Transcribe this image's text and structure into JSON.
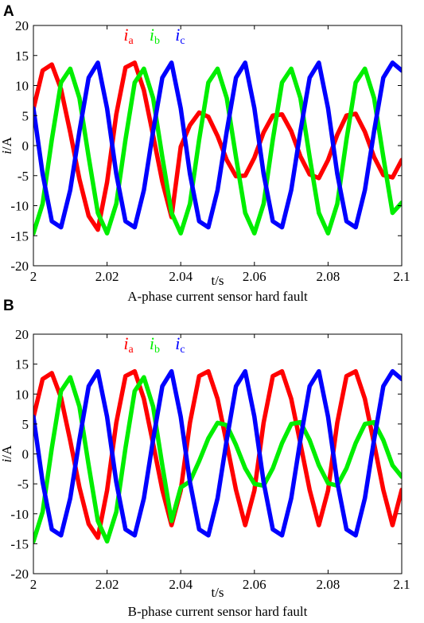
{
  "chart_data": [
    {
      "type": "line",
      "panel_label": "A",
      "caption": "A-phase current sensor hard fault",
      "xlabel": "t/s",
      "ylabel_italic": "i",
      "ylabel_rest": "/A",
      "xlim": [
        2.0,
        2.1
      ],
      "ylim": [
        -20,
        20
      ],
      "xticks": [
        2.0,
        2.02,
        2.04,
        2.06,
        2.08,
        2.1
      ],
      "xtick_labels": [
        "2",
        "2.02",
        "2.04",
        "2.06",
        "2.08",
        "2.1"
      ],
      "yticks": [
        20,
        15,
        10,
        5,
        0,
        -5,
        -10,
        -15,
        -20
      ],
      "ytick_labels": [
        "20",
        "15",
        "10",
        "5",
        "0",
        "-5",
        "-10",
        "-15",
        "-20"
      ],
      "series": [
        {
          "label_main": "i",
          "label_sub": "a",
          "color": "#ff0000",
          "description": "Phase a current: 50 Hz sine of amplitude ~14 A until ~2.04 s, then reduced amplitude ~5.5 A after fault",
          "x": [
            2.0,
            2.0025,
            2.005,
            2.0075,
            2.01,
            2.0125,
            2.015,
            2.0175,
            2.02,
            2.0225,
            2.025,
            2.0275,
            2.03,
            2.0325,
            2.035,
            2.0375,
            2.04,
            2.0425,
            2.045,
            2.0475,
            2.05,
            2.0525,
            2.055,
            2.0575,
            2.06,
            2.0625,
            2.065,
            2.0675,
            2.07,
            2.0725,
            2.075,
            2.0775,
            2.08,
            2.0825,
            2.085,
            2.0875,
            2.09,
            2.0925,
            2.095,
            2.0975,
            2.1
          ],
          "y": [
            6.1,
            12.5,
            13.5,
            9.4,
            2.2,
            -5.6,
            -11.7,
            -14.0,
            -6.1,
            5.2,
            13.0,
            13.8,
            9.2,
            1.7,
            -6.0,
            -11.9,
            -0.2,
            3.4,
            5.5,
            4.8,
            1.6,
            -2.4,
            -5.1,
            -5.0,
            -2.0,
            2.2,
            5.0,
            5.2,
            2.4,
            -1.8,
            -4.8,
            -5.4,
            -2.4,
            1.8,
            5.0,
            5.3,
            2.3,
            -1.9,
            -4.9,
            -5.3,
            -2.4
          ]
        },
        {
          "label_main": "i",
          "label_sub": "b",
          "color": "#00ee00",
          "description": "Phase b current: 50 Hz sine of amplitude ~14 A",
          "x": [
            2.0,
            2.0025,
            2.005,
            2.0075,
            2.01,
            2.0125,
            2.015,
            2.0175,
            2.02,
            2.0225,
            2.025,
            2.0275,
            2.03,
            2.0325,
            2.035,
            2.0375,
            2.04,
            2.0425,
            2.045,
            2.0475,
            2.05,
            2.0525,
            2.055,
            2.0575,
            2.06,
            2.0625,
            2.065,
            2.0675,
            2.07,
            2.0725,
            2.075,
            2.0775,
            2.08,
            2.0825,
            2.085,
            2.0875,
            2.09,
            2.0925,
            2.095,
            2.0975,
            2.1
          ],
          "y": [
            -14.6,
            -9.7,
            1.0,
            10.5,
            12.8,
            7.9,
            -1.9,
            -11.2,
            -14.6,
            -9.7,
            1.0,
            10.5,
            12.8,
            7.9,
            -1.9,
            -11.2,
            -14.6,
            -9.7,
            1.0,
            10.5,
            12.8,
            7.9,
            -1.9,
            -11.2,
            -14.6,
            -9.7,
            1.0,
            10.5,
            12.8,
            7.9,
            -1.9,
            -11.2,
            -14.6,
            -9.7,
            1.0,
            10.5,
            12.8,
            7.9,
            -1.9,
            -11.2,
            -9.5
          ]
        },
        {
          "label_main": "i",
          "label_sub": "c",
          "color": "#0000ff",
          "description": "Phase c current: 50 Hz sine of amplitude ~14 A",
          "x": [
            2.0,
            2.0025,
            2.005,
            2.0075,
            2.01,
            2.0125,
            2.015,
            2.0175,
            2.02,
            2.0225,
            2.025,
            2.0275,
            2.03,
            2.0325,
            2.035,
            2.0375,
            2.04,
            2.0425,
            2.045,
            2.0475,
            2.05,
            2.0525,
            2.055,
            2.0575,
            2.06,
            2.0625,
            2.065,
            2.0675,
            2.07,
            2.0725,
            2.075,
            2.0775,
            2.08,
            2.0825,
            2.085,
            2.0875,
            2.09,
            2.0925,
            2.095,
            2.0975,
            2.1
          ],
          "y": [
            6.2,
            -4.7,
            -12.6,
            -13.6,
            -7.4,
            2.4,
            11.3,
            13.8,
            6.2,
            -4.7,
            -12.6,
            -13.6,
            -7.4,
            2.4,
            11.3,
            13.8,
            6.2,
            -4.7,
            -12.6,
            -13.6,
            -7.4,
            2.4,
            11.3,
            13.8,
            6.2,
            -4.7,
            -12.6,
            -13.6,
            -7.4,
            2.4,
            11.3,
            13.8,
            6.2,
            -4.7,
            -12.6,
            -13.6,
            -7.4,
            2.4,
            11.3,
            13.8,
            12.5
          ]
        }
      ]
    },
    {
      "type": "line",
      "panel_label": "B",
      "caption": "B-phase current sensor hard fault",
      "xlabel": "t/s",
      "ylabel_italic": "i",
      "ylabel_rest": "/A",
      "xlim": [
        2.0,
        2.1
      ],
      "ylim": [
        -20,
        20
      ],
      "xticks": [
        2.0,
        2.02,
        2.04,
        2.06,
        2.08,
        2.1
      ],
      "xtick_labels": [
        "2",
        "2.02",
        "2.04",
        "2.06",
        "2.08",
        "2.1"
      ],
      "yticks": [
        20,
        15,
        10,
        5,
        0,
        -5,
        -10,
        -15,
        -20
      ],
      "ytick_labels": [
        "20",
        "15",
        "10",
        "5",
        "0",
        "-5",
        "-10",
        "-15",
        "-20"
      ],
      "series": [
        {
          "label_main": "i",
          "label_sub": "a",
          "color": "#ff0000",
          "description": "Phase a current: 50 Hz sine of amplitude ~14 A",
          "x": [
            2.0,
            2.0025,
            2.005,
            2.0075,
            2.01,
            2.0125,
            2.015,
            2.0175,
            2.02,
            2.0225,
            2.025,
            2.0275,
            2.03,
            2.0325,
            2.035,
            2.0375,
            2.04,
            2.0425,
            2.045,
            2.0475,
            2.05,
            2.0525,
            2.055,
            2.0575,
            2.06,
            2.0625,
            2.065,
            2.0675,
            2.07,
            2.0725,
            2.075,
            2.0775,
            2.08,
            2.0825,
            2.085,
            2.0875,
            2.09,
            2.0925,
            2.095,
            2.0975,
            2.1
          ],
          "y": [
            6.1,
            12.5,
            13.5,
            9.4,
            2.2,
            -5.6,
            -11.7,
            -14.0,
            -6.1,
            5.2,
            13.0,
            13.8,
            9.2,
            1.7,
            -6.0,
            -11.9,
            -6.1,
            5.2,
            13.0,
            13.8,
            9.2,
            1.7,
            -6.0,
            -11.9,
            -6.1,
            5.2,
            13.0,
            13.8,
            9.2,
            1.7,
            -6.0,
            -11.9,
            -6.1,
            5.2,
            13.0,
            13.8,
            9.2,
            1.7,
            -6.0,
            -11.9,
            -6.0
          ]
        },
        {
          "label_main": "i",
          "label_sub": "b",
          "color": "#00ee00",
          "description": "Phase b current: 50 Hz sine of amplitude ~14 A until ~2.04 s, then reduced amplitude ~5.5 A after fault",
          "x": [
            2.0,
            2.0025,
            2.005,
            2.0075,
            2.01,
            2.0125,
            2.015,
            2.0175,
            2.02,
            2.0225,
            2.025,
            2.0275,
            2.03,
            2.0325,
            2.035,
            2.0375,
            2.04,
            2.0425,
            2.045,
            2.0475,
            2.05,
            2.0525,
            2.055,
            2.0575,
            2.06,
            2.0625,
            2.065,
            2.0675,
            2.07,
            2.0725,
            2.075,
            2.0775,
            2.08,
            2.0825,
            2.085,
            2.0875,
            2.09,
            2.0925,
            2.095,
            2.0975,
            2.1
          ],
          "y": [
            -14.6,
            -9.7,
            1.0,
            10.5,
            12.8,
            7.9,
            -1.9,
            -11.2,
            -14.6,
            -9.7,
            1.0,
            10.5,
            12.8,
            7.9,
            -1.9,
            -11.2,
            -5.6,
            -4.6,
            -1.2,
            2.6,
            5.2,
            4.8,
            1.5,
            -2.4,
            -5.0,
            -5.3,
            -2.4,
            1.8,
            5.0,
            5.3,
            2.3,
            -1.9,
            -4.9,
            -5.3,
            -2.4,
            1.8,
            5.0,
            5.3,
            2.3,
            -1.9,
            -3.8
          ]
        },
        {
          "label_main": "i",
          "label_sub": "c",
          "color": "#0000ff",
          "description": "Phase c current: 50 Hz sine of amplitude ~14 A",
          "x": [
            2.0,
            2.0025,
            2.005,
            2.0075,
            2.01,
            2.0125,
            2.015,
            2.0175,
            2.02,
            2.0225,
            2.025,
            2.0275,
            2.03,
            2.0325,
            2.035,
            2.0375,
            2.04,
            2.0425,
            2.045,
            2.0475,
            2.05,
            2.0525,
            2.055,
            2.0575,
            2.06,
            2.0625,
            2.065,
            2.0675,
            2.07,
            2.0725,
            2.075,
            2.0775,
            2.08,
            2.0825,
            2.085,
            2.0875,
            2.09,
            2.0925,
            2.095,
            2.0975,
            2.1
          ],
          "y": [
            6.2,
            -4.7,
            -12.6,
            -13.6,
            -7.4,
            2.4,
            11.3,
            13.8,
            6.2,
            -4.7,
            -12.6,
            -13.6,
            -7.4,
            2.4,
            11.3,
            13.8,
            6.2,
            -4.7,
            -12.6,
            -13.6,
            -7.4,
            2.4,
            11.3,
            13.8,
            6.2,
            -4.7,
            -12.6,
            -13.6,
            -7.4,
            2.4,
            11.3,
            13.8,
            6.2,
            -4.7,
            -12.6,
            -13.6,
            -7.4,
            2.4,
            11.3,
            13.8,
            12.5
          ]
        }
      ]
    }
  ]
}
